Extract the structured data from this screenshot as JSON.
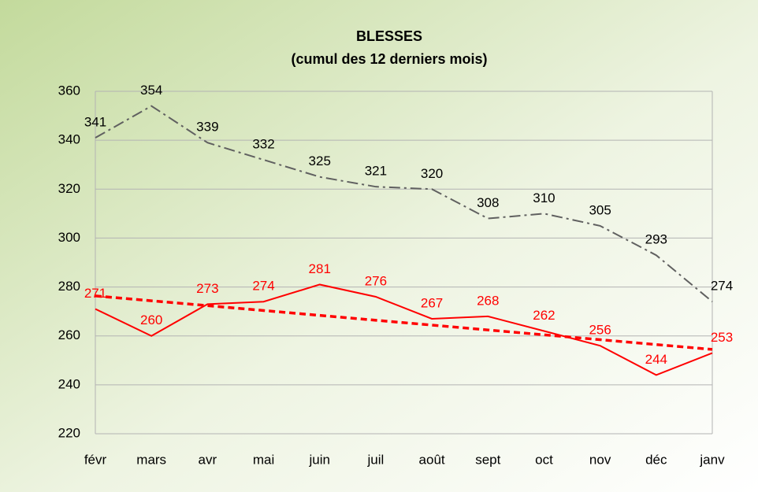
{
  "chart_data": {
    "type": "line",
    "title": [
      "BLESSES",
      "(cumul des 12 derniers mois)"
    ],
    "categories": [
      "févr",
      "mars",
      "avr",
      "mai",
      "juin",
      "juil",
      "août",
      "sept",
      "oct",
      "nov",
      "déc",
      "janv"
    ],
    "series": [
      {
        "color": "#606060",
        "label_color": "#000000",
        "dash": "dashdot",
        "values": [
          341,
          354,
          339,
          332,
          325,
          321,
          320,
          308,
          310,
          305,
          293,
          274
        ]
      },
      {
        "color": "#ff0000",
        "label_color": "#ff0000",
        "dash": "solid",
        "trendline": "linear",
        "values": [
          271,
          260,
          273,
          274,
          281,
          276,
          267,
          268,
          262,
          256,
          244,
          253
        ]
      }
    ],
    "ylim": [
      220,
      360
    ],
    "yticks": [
      220,
      240,
      260,
      280,
      300,
      320,
      340,
      360
    ],
    "grid": true
  }
}
